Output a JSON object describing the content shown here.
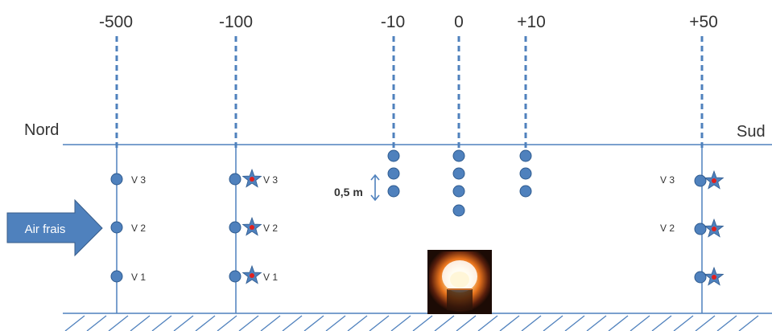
{
  "positions": [
    {
      "label": "-500",
      "value": -500
    },
    {
      "label": "-100",
      "value": -100
    },
    {
      "label": "-10",
      "value": -10
    },
    {
      "label": "0",
      "value": 0
    },
    {
      "label": "+10",
      "value": 10
    },
    {
      "label": "+50",
      "value": 50
    }
  ],
  "north_label": "Nord",
  "south_label": "Sud",
  "air_label": "Air frais",
  "spacing_label": "0,5 m",
  "level_labels": [
    "V 3",
    "V 2",
    "V 1"
  ],
  "colors": {
    "line": "#4f81bd",
    "dot": "#4f81bd",
    "dot_stroke": "#2f5b8f",
    "star": "#4f81bd",
    "star_center": "#e0201e",
    "arrow": "#4f81bd",
    "text": "#333333"
  },
  "icons": [
    "fire-icon",
    "star-icon",
    "double-arrow-icon",
    "hatch-ground"
  ]
}
